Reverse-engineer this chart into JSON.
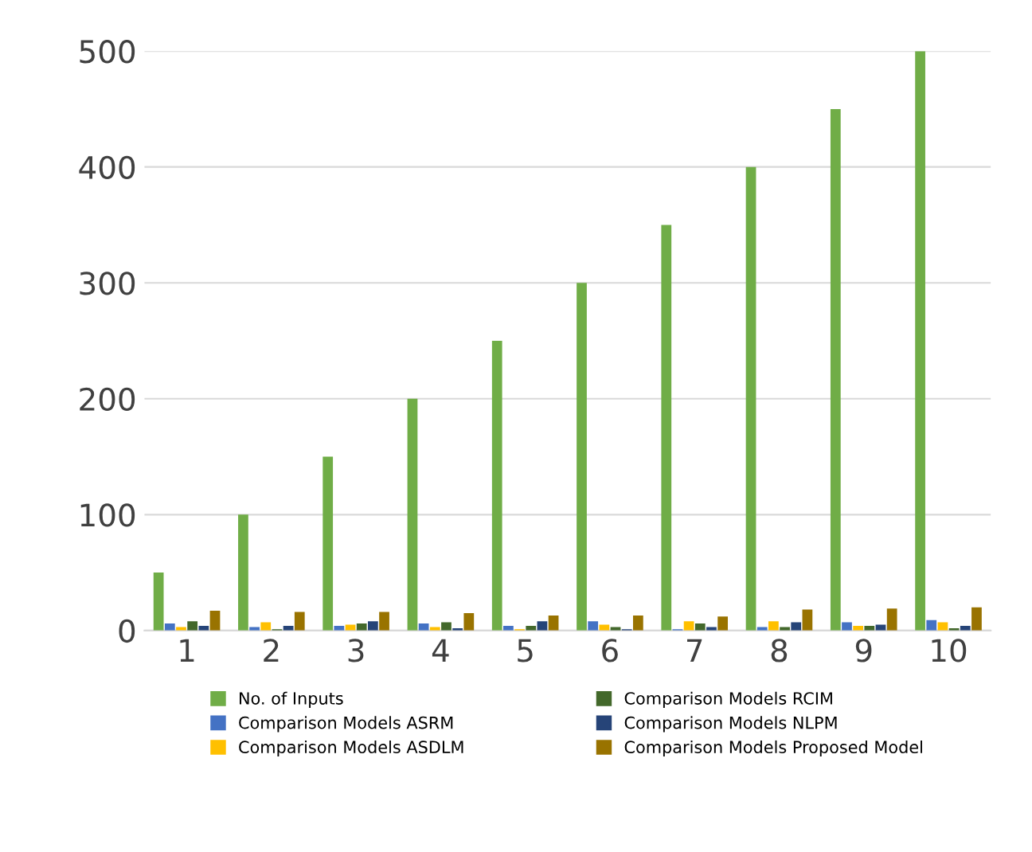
{
  "chart_data": {
    "type": "bar",
    "categories": [
      "1",
      "2",
      "3",
      "4",
      "5",
      "6",
      "7",
      "8",
      "9",
      "10"
    ],
    "series": [
      {
        "name": "No. of Inputs",
        "color": "#70ad47",
        "values": [
          50,
          100,
          150,
          200,
          250,
          300,
          350,
          400,
          450,
          500
        ]
      },
      {
        "name": "Comparison Models ASRM",
        "color": "#4472c4",
        "values": [
          6,
          3,
          4,
          6,
          4,
          8,
          1,
          3,
          7,
          9
        ]
      },
      {
        "name": "Comparison Models ASDLM",
        "color": "#ffc000",
        "values": [
          3,
          7,
          5,
          3,
          1,
          5,
          8,
          8,
          4,
          7
        ]
      },
      {
        "name": "Comparison Models RCIM",
        "color": "#43682b",
        "values": [
          8,
          1,
          6,
          7,
          4,
          3,
          6,
          3,
          4,
          2
        ]
      },
      {
        "name": "Comparison Models NLPM",
        "color": "#264478",
        "values": [
          4,
          4,
          8,
          2,
          8,
          1,
          3,
          7,
          5,
          4
        ]
      },
      {
        "name": "Comparison Models Proposed Model",
        "color": "#997300",
        "values": [
          17,
          16,
          16,
          15,
          13,
          13,
          12,
          18,
          19,
          20
        ]
      }
    ],
    "ylim": [
      0,
      500
    ],
    "yticks": [
      0,
      100,
      200,
      300,
      400,
      500
    ],
    "grid": "y",
    "legend": "bottom"
  }
}
